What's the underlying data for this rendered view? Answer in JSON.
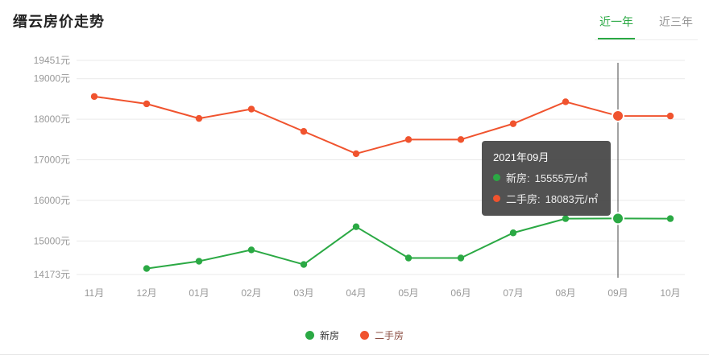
{
  "header": {
    "title": "缙云房价走势",
    "tabs": [
      {
        "label": "近一年",
        "active": true
      },
      {
        "label": "近三年",
        "active": false
      }
    ]
  },
  "colors": {
    "accent_green": "#2BA944",
    "new_house": "#2BA944",
    "second_hand": "#F0532E",
    "axis_label": "#999999",
    "gridline": "#e9e9e9",
    "pointer_line": "#444444",
    "tooltip_bg": "rgba(58,58,58,0.88)"
  },
  "chart_data": {
    "type": "line",
    "title": "缙云房价走势",
    "xlabel": "",
    "ylabel": "",
    "categories": [
      "11月",
      "12月",
      "01月",
      "02月",
      "03月",
      "04月",
      "05月",
      "06月",
      "07月",
      "08月",
      "09月",
      "10月"
    ],
    "series": [
      {
        "name": "新房",
        "color": "#2BA944",
        "values": [
          null,
          14320,
          14500,
          14780,
          14420,
          15350,
          14580,
          14580,
          15200,
          15550,
          15555,
          15550
        ]
      },
      {
        "name": "二手房",
        "color": "#F0532E",
        "values": [
          18560,
          18380,
          18020,
          18250,
          17700,
          17150,
          17500,
          17500,
          17890,
          18430,
          18083,
          18080
        ]
      }
    ],
    "yticks": [
      {
        "label": "19451元",
        "value": 19451
      },
      {
        "label": "19000元",
        "value": 19000
      },
      {
        "label": "18000元",
        "value": 18000
      },
      {
        "label": "17000元",
        "value": 17000
      },
      {
        "label": "16000元",
        "value": 16000
      },
      {
        "label": "15000元",
        "value": 15000
      },
      {
        "label": "14173元",
        "value": 14173
      }
    ],
    "ylim": [
      14173,
      19451
    ],
    "grid": true,
    "legend_position": "bottom",
    "highlight_index": 10,
    "highlight_month": "09月"
  },
  "tooltip": {
    "title": "2021年09月",
    "rows": [
      {
        "series": "新房",
        "label": "新房:",
        "value": "15555元/㎡",
        "color": "#2BA944"
      },
      {
        "series": "二手房",
        "label": "二手房:",
        "value": "18083元/㎡",
        "color": "#F0532E"
      }
    ]
  },
  "legend": {
    "items": [
      {
        "label": "新房",
        "color": "#2BA944",
        "text_color": "#333333"
      },
      {
        "label": "二手房",
        "color": "#F0532E",
        "text_color": "#8C5045"
      }
    ]
  }
}
